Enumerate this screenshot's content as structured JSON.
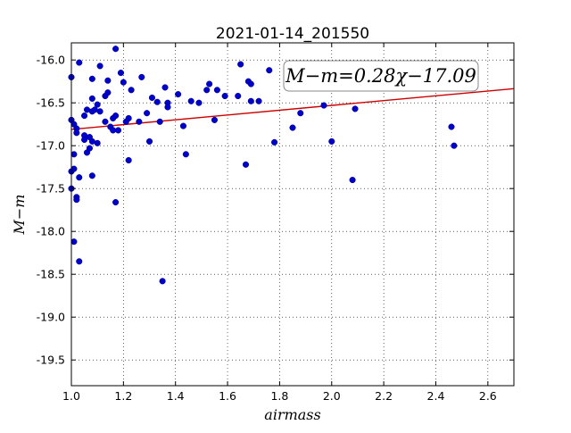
{
  "chart_data": {
    "type": "scatter",
    "title": "2021-01-14_201550",
    "xlabel": "airmass",
    "ylabel": "M−m",
    "xlim": [
      1.0,
      2.7
    ],
    "ylim": [
      -19.8,
      -15.8
    ],
    "y_inverted": true,
    "grid": true,
    "xticks": [
      "1.0",
      "1.2",
      "1.4",
      "1.6",
      "1.8",
      "2.0",
      "2.2",
      "2.4",
      "2.6"
    ],
    "yticks": [
      "-16.0",
      "-16.5",
      "-17.0",
      "-17.5",
      "-18.0",
      "-18.5",
      "-19.0",
      "-19.5"
    ],
    "fit_label": "M−m=0.28χ−17.09",
    "fit": {
      "slope": 0.28,
      "intercept": -17.09
    },
    "point_color": "#0000cc",
    "fit_color": "#cc0000",
    "points": [
      [
        1.0,
        -16.2
      ],
      [
        1.0,
        -16.7
      ],
      [
        1.0,
        -17.3
      ],
      [
        1.0,
        -17.5
      ],
      [
        1.01,
        -16.75
      ],
      [
        1.01,
        -17.1
      ],
      [
        1.01,
        -17.27
      ],
      [
        1.01,
        -18.12
      ],
      [
        1.02,
        -16.8
      ],
      [
        1.02,
        -16.85
      ],
      [
        1.02,
        -17.6
      ],
      [
        1.02,
        -17.63
      ],
      [
        1.03,
        -16.03
      ],
      [
        1.03,
        -17.37
      ],
      [
        1.03,
        -18.35
      ],
      [
        1.05,
        -16.65
      ],
      [
        1.05,
        -16.88
      ],
      [
        1.05,
        -16.93
      ],
      [
        1.06,
        -16.58
      ],
      [
        1.06,
        -17.08
      ],
      [
        1.07,
        -16.9
      ],
      [
        1.07,
        -17.03
      ],
      [
        1.08,
        -16.22
      ],
      [
        1.08,
        -16.45
      ],
      [
        1.08,
        -16.6
      ],
      [
        1.08,
        -16.95
      ],
      [
        1.08,
        -17.35
      ],
      [
        1.09,
        -16.58
      ],
      [
        1.1,
        -16.52
      ],
      [
        1.1,
        -16.97
      ],
      [
        1.11,
        -16.07
      ],
      [
        1.11,
        -16.6
      ],
      [
        1.13,
        -16.72
      ],
      [
        1.13,
        -16.42
      ],
      [
        1.14,
        -16.38
      ],
      [
        1.14,
        -16.24
      ],
      [
        1.15,
        -16.78
      ],
      [
        1.16,
        -16.68
      ],
      [
        1.16,
        -16.82
      ],
      [
        1.17,
        -15.87
      ],
      [
        1.17,
        -16.65
      ],
      [
        1.17,
        -17.66
      ],
      [
        1.18,
        -16.82
      ],
      [
        1.19,
        -16.15
      ],
      [
        1.2,
        -16.26
      ],
      [
        1.21,
        -16.72
      ],
      [
        1.22,
        -17.17
      ],
      [
        1.22,
        -16.68
      ],
      [
        1.23,
        -16.35
      ],
      [
        1.26,
        -16.72
      ],
      [
        1.27,
        -16.2
      ],
      [
        1.29,
        -16.62
      ],
      [
        1.3,
        -16.95
      ],
      [
        1.31,
        -16.44
      ],
      [
        1.33,
        -16.49
      ],
      [
        1.34,
        -16.72
      ],
      [
        1.35,
        -18.58
      ],
      [
        1.36,
        -16.32
      ],
      [
        1.37,
        -16.5
      ],
      [
        1.37,
        -16.55
      ],
      [
        1.41,
        -16.4
      ],
      [
        1.43,
        -16.77
      ],
      [
        1.44,
        -17.1
      ],
      [
        1.46,
        -16.48
      ],
      [
        1.49,
        -16.5
      ],
      [
        1.52,
        -16.35
      ],
      [
        1.53,
        -16.28
      ],
      [
        1.55,
        -16.7
      ],
      [
        1.56,
        -16.35
      ],
      [
        1.59,
        -16.42
      ],
      [
        1.64,
        -16.42
      ],
      [
        1.65,
        -16.05
      ],
      [
        1.67,
        -17.22
      ],
      [
        1.68,
        -16.25
      ],
      [
        1.69,
        -16.28
      ],
      [
        1.69,
        -16.48
      ],
      [
        1.72,
        -16.48
      ],
      [
        1.76,
        -16.12
      ],
      [
        1.78,
        -16.96
      ],
      [
        1.85,
        -16.79
      ],
      [
        1.88,
        -16.62
      ],
      [
        1.97,
        -16.53
      ],
      [
        2.0,
        -16.95
      ],
      [
        2.08,
        -17.4
      ],
      [
        2.09,
        -16.57
      ],
      [
        2.46,
        -16.78
      ],
      [
        2.47,
        -17.0
      ]
    ]
  }
}
